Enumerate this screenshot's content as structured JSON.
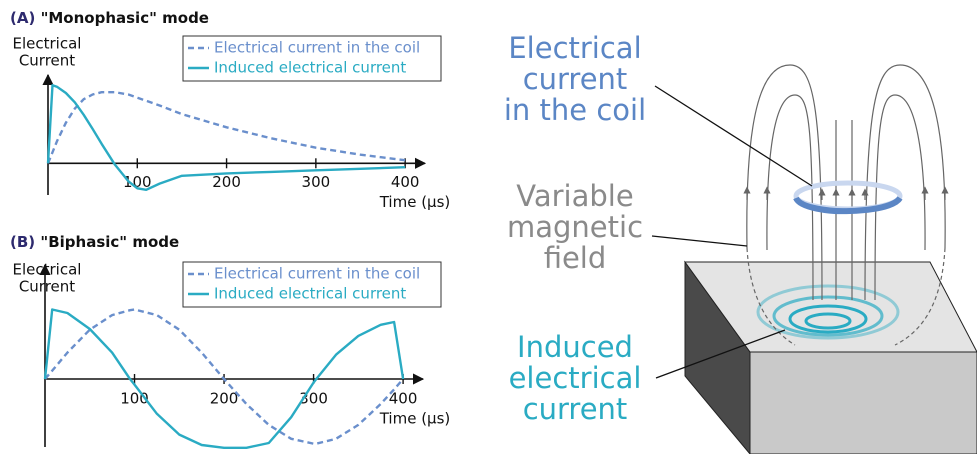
{
  "chart_data": [
    {
      "type": "line",
      "label": "(A)",
      "title": "\"Monophasic\" mode",
      "ylabel": [
        "Electrical",
        "Current"
      ],
      "xlabel": "Time (μs)",
      "xlim": [
        0,
        420
      ],
      "xticks": [
        100,
        200,
        300,
        400
      ],
      "ylim": [
        -0.47,
        1.13
      ],
      "legend": "upper right",
      "x": [
        0,
        5,
        10,
        20,
        30,
        40,
        50,
        60,
        75,
        90,
        100,
        110,
        125,
        150,
        200,
        250,
        300,
        350,
        400
      ],
      "series": [
        {
          "name": "Electrical current in the coil",
          "color": "#6a8fcc",
          "linestyle": "dashed",
          "values": [
            0,
            0.14,
            0.28,
            0.52,
            0.7,
            0.82,
            0.88,
            0.91,
            0.91,
            0.88,
            0.84,
            0.8,
            0.74,
            0.63,
            0.46,
            0.32,
            0.2,
            0.11,
            0.04
          ]
        },
        {
          "name": "Induced electrical current",
          "color": "#2aabc3",
          "linestyle": "solid",
          "values": [
            0,
            1.0,
            0.98,
            0.9,
            0.78,
            0.62,
            0.44,
            0.25,
            -0.02,
            -0.23,
            -0.32,
            -0.34,
            -0.26,
            -0.16,
            -0.13,
            -0.11,
            -0.09,
            -0.07,
            -0.05
          ]
        }
      ]
    },
    {
      "type": "line",
      "label": "(B)",
      "title": "\"Biphasic\" mode",
      "ylabel": [
        "Electrical",
        "Current"
      ],
      "xlabel": "Time (μs)",
      "xlim": [
        0,
        420
      ],
      "xticks": [
        100,
        200,
        300,
        400
      ],
      "ylim": [
        -1.05,
        1.64
      ],
      "legend": "upper right",
      "x": [
        0,
        8,
        25,
        50,
        75,
        95,
        100,
        125,
        150,
        175,
        200,
        225,
        250,
        275,
        300,
        303,
        325,
        350,
        375,
        390,
        400
      ],
      "series": [
        {
          "name": "Electrical current in the coil",
          "color": "#6a8fcc",
          "linestyle": "dashed",
          "values": [
            0,
            0.12,
            0.38,
            0.71,
            0.92,
            0.99,
            1.0,
            0.92,
            0.71,
            0.38,
            0,
            -0.36,
            -0.66,
            -0.86,
            -0.93,
            -0.93,
            -0.86,
            -0.66,
            -0.36,
            -0.15,
            0
          ]
        },
        {
          "name": "Induced electrical current",
          "color": "#2aabc3",
          "linestyle": "solid",
          "values": [
            0,
            1.0,
            0.95,
            0.72,
            0.38,
            0,
            -0.08,
            -0.5,
            -0.8,
            -0.95,
            -0.99,
            -0.99,
            -0.92,
            -0.55,
            -0.05,
            0,
            0.35,
            0.62,
            0.78,
            0.82,
            0
          ]
        }
      ]
    }
  ],
  "diagram": {
    "coil_label": [
      "Electrical",
      "current",
      "in the coil"
    ],
    "field_label": [
      "Variable",
      "magnetic",
      "field"
    ],
    "induced_label": [
      "Induced",
      "electrical",
      "current"
    ]
  }
}
